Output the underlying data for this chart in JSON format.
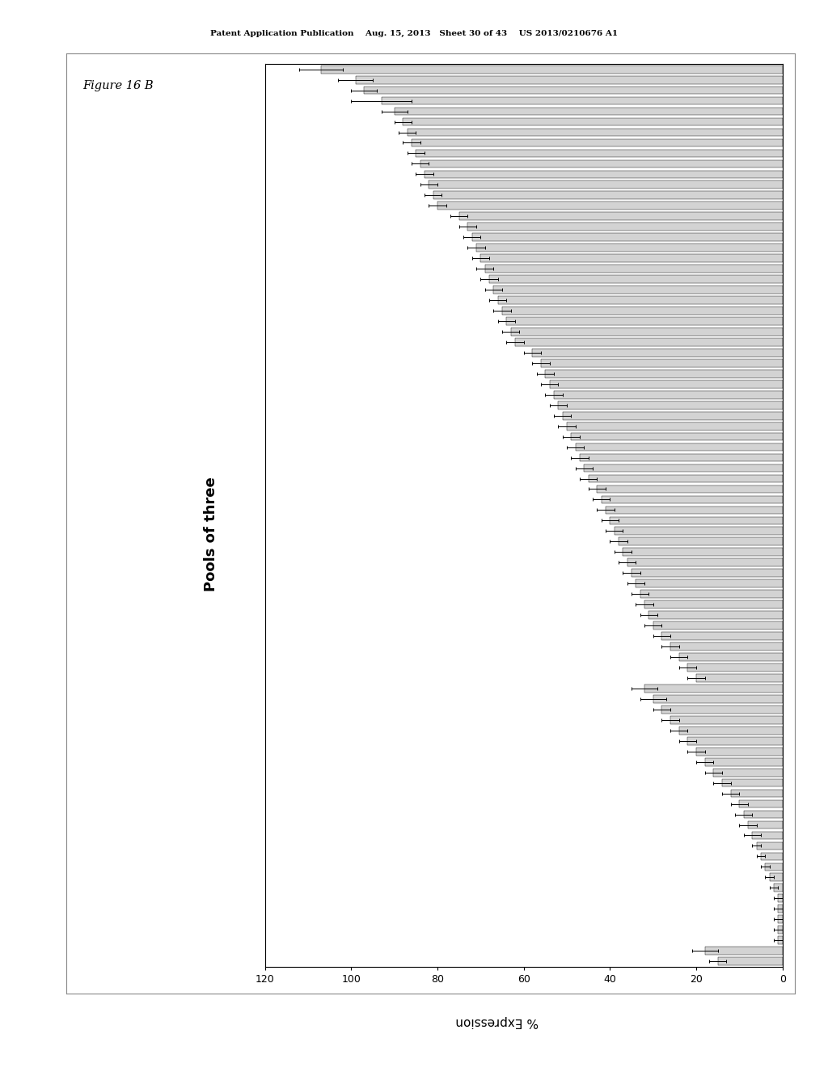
{
  "title": "Pools of three",
  "xlabel": "% Expression",
  "background_color": "#ffffff",
  "bar_color": "#d3d3d3",
  "bar_edge_color": "#000000",
  "header": "Patent Application Publication    Aug. 15, 2013   Sheet 30 of 43    US 2013/0210676 A1",
  "figure_label": "Figure 16 B",
  "bar_values": [
    107,
    99,
    97,
    93,
    90,
    88,
    87,
    86,
    85,
    84,
    83,
    82,
    81,
    80,
    75,
    73,
    72,
    71,
    70,
    69,
    68,
    67,
    66,
    65,
    64,
    63,
    62,
    58,
    56,
    55,
    54,
    53,
    52,
    51,
    50,
    49,
    48,
    47,
    46,
    45,
    43,
    42,
    41,
    40,
    39,
    38,
    37,
    36,
    35,
    34,
    33,
    32,
    31,
    30,
    28,
    26,
    24,
    22,
    20,
    32,
    30,
    28,
    26,
    24,
    22,
    20,
    18,
    16,
    14,
    12,
    10,
    9,
    8,
    7,
    6,
    5,
    4,
    3,
    2,
    1,
    1,
    1,
    1,
    1,
    18,
    15
  ],
  "err_values": [
    5,
    4,
    3,
    7,
    3,
    2,
    2,
    2,
    2,
    2,
    2,
    2,
    2,
    2,
    2,
    2,
    2,
    2,
    2,
    2,
    2,
    2,
    2,
    2,
    2,
    2,
    2,
    2,
    2,
    2,
    2,
    2,
    2,
    2,
    2,
    2,
    2,
    2,
    2,
    2,
    2,
    2,
    2,
    2,
    2,
    2,
    2,
    2,
    2,
    2,
    2,
    2,
    2,
    2,
    2,
    2,
    2,
    2,
    2,
    3,
    3,
    2,
    2,
    2,
    2,
    2,
    2,
    2,
    2,
    2,
    2,
    2,
    2,
    2,
    1,
    1,
    1,
    1,
    1,
    1,
    1,
    1,
    1,
    1,
    3,
    2
  ]
}
